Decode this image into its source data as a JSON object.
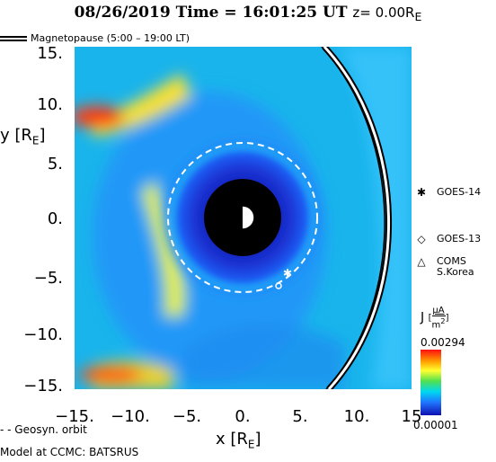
{
  "header": {
    "title_prefix": "08/26/2019 Time = 16:01:25 UT",
    "z_label": "z= 0.00R",
    "z_sub": "E"
  },
  "magnetopause_legend": "Magnetopause (5:00 – 19:00 LT)",
  "axes": {
    "ylabel_main": "y [R",
    "ylabel_sub": "E",
    "ylabel_end": "]",
    "xlabel_main": "x [R",
    "xlabel_sub": "E",
    "xlabel_end": "]",
    "yticks": [
      "15.",
      "10.",
      "5.",
      "0.",
      "−5.",
      "−10.",
      "−15."
    ],
    "xticks": [
      "−15.",
      "−10.",
      "−5.",
      "0.",
      "5.",
      "10.",
      "15"
    ]
  },
  "geosyn_legend": "- -  Geosyn. orbit",
  "model_label": "Model at CCMC: BATSRUS",
  "satellites": [
    {
      "symbol": "✱",
      "name": "GOES-14"
    },
    {
      "symbol": "◇",
      "name": "GOES-13"
    },
    {
      "symbol": "△",
      "name": "COMS",
      "name2": "S.Korea"
    }
  ],
  "colorbar": {
    "label_j": "J",
    "label_units_num": "μA",
    "label_units_den": "m",
    "label_units_exp": "2",
    "max": "0.00294",
    "min": "0.00001",
    "colors": [
      "#ff1010",
      "#ffa000",
      "#ffff30",
      "#50e050",
      "#00d8f0",
      "#1f78ff",
      "#1010b0"
    ]
  },
  "map": {
    "x_range": [
      -15,
      15
    ],
    "y_range": [
      -15,
      15
    ],
    "earth_shadow_radius": 3.5,
    "earth_radius": 1,
    "geosync_radius": 6.6
  }
}
